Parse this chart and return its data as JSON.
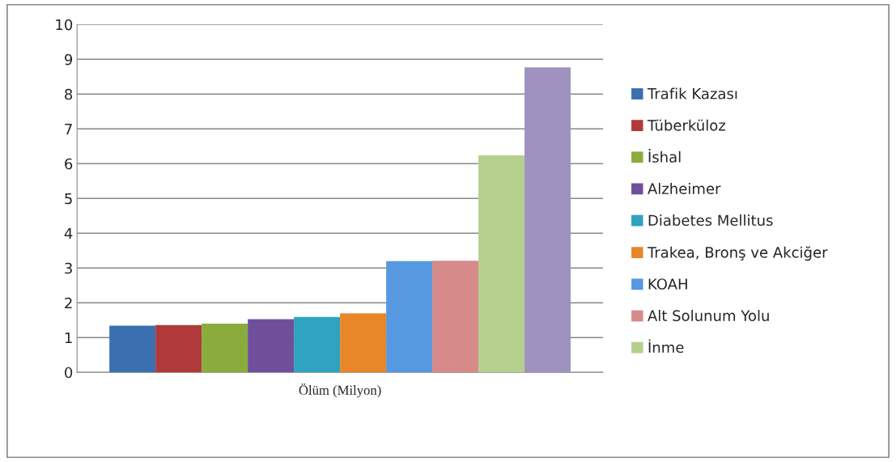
{
  "chart_data": {
    "type": "bar",
    "categories": [
      "Ölüm (Milyon)"
    ],
    "series": [
      {
        "name": "Trafik Kazası",
        "color": "#3a6fb0",
        "values": [
          1.34
        ]
      },
      {
        "name": "Tüberküloz",
        "color": "#b03a3a",
        "values": [
          1.36
        ]
      },
      {
        "name": "İshal",
        "color": "#8aac3c",
        "values": [
          1.4
        ]
      },
      {
        "name": "Alzheimer",
        "color": "#6f4f9a",
        "values": [
          1.53
        ]
      },
      {
        "name": "Diabetes Mellitus",
        "color": "#2fa3bf",
        "values": [
          1.59
        ]
      },
      {
        "name": "Trakea, Bronş ve Akciğer",
        "color": "#e8862a",
        "values": [
          1.7
        ]
      },
      {
        "name": "KOAH",
        "color": "#5699e0",
        "values": [
          3.2
        ]
      },
      {
        "name": "Alt Solunum Yolu",
        "color": "#d78a8a",
        "values": [
          3.21
        ]
      },
      {
        "name": "İnme",
        "color": "#b5d08e",
        "values": [
          6.24
        ]
      },
      {
        "color": "#a092c0",
        "values": [
          8.77
        ]
      }
    ],
    "ylim": [
      0,
      10
    ],
    "yticks": [
      0,
      1,
      2,
      3,
      4,
      5,
      6,
      7,
      8,
      9,
      10
    ],
    "grid": "y",
    "legend": "right"
  }
}
